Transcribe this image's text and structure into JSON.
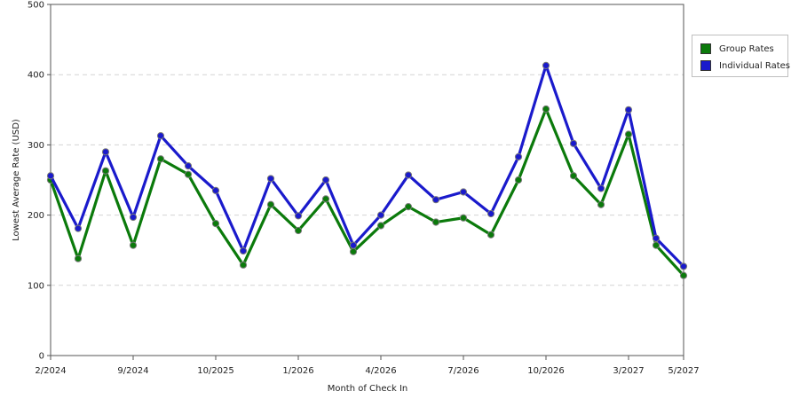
{
  "chart_data": {
    "type": "line",
    "xlabel": "Month of Check In",
    "ylabel": "Lowest Average Rate (USD)",
    "ylim": [
      0,
      500
    ],
    "y_ticks": [
      0,
      100,
      200,
      300,
      400,
      500
    ],
    "grid": true,
    "legend_position": "right",
    "x_tick_labels": [
      "2/2024",
      "9/2024",
      "10/2025",
      "1/2026",
      "4/2026",
      "7/2026",
      "10/2026",
      "3/2027",
      "5/2027"
    ],
    "x_tick_index": [
      0,
      3,
      6,
      9,
      12,
      15,
      18,
      21,
      23
    ],
    "series": [
      {
        "name": "Group Rates",
        "color": "#0b7a0b",
        "values": [
          250,
          138,
          263,
          157,
          280,
          258,
          188,
          129,
          215,
          178,
          223,
          148,
          185,
          212,
          190,
          196,
          172,
          250,
          351,
          256,
          215,
          315,
          157,
          114
        ]
      },
      {
        "name": "Individual Rates",
        "color": "#1a1acc",
        "values": [
          256,
          181,
          290,
          197,
          313,
          270,
          235,
          149,
          252,
          199,
          250,
          157,
          200,
          257,
          222,
          233,
          202,
          283,
          413,
          302,
          238,
          350,
          167,
          127
        ]
      }
    ]
  }
}
